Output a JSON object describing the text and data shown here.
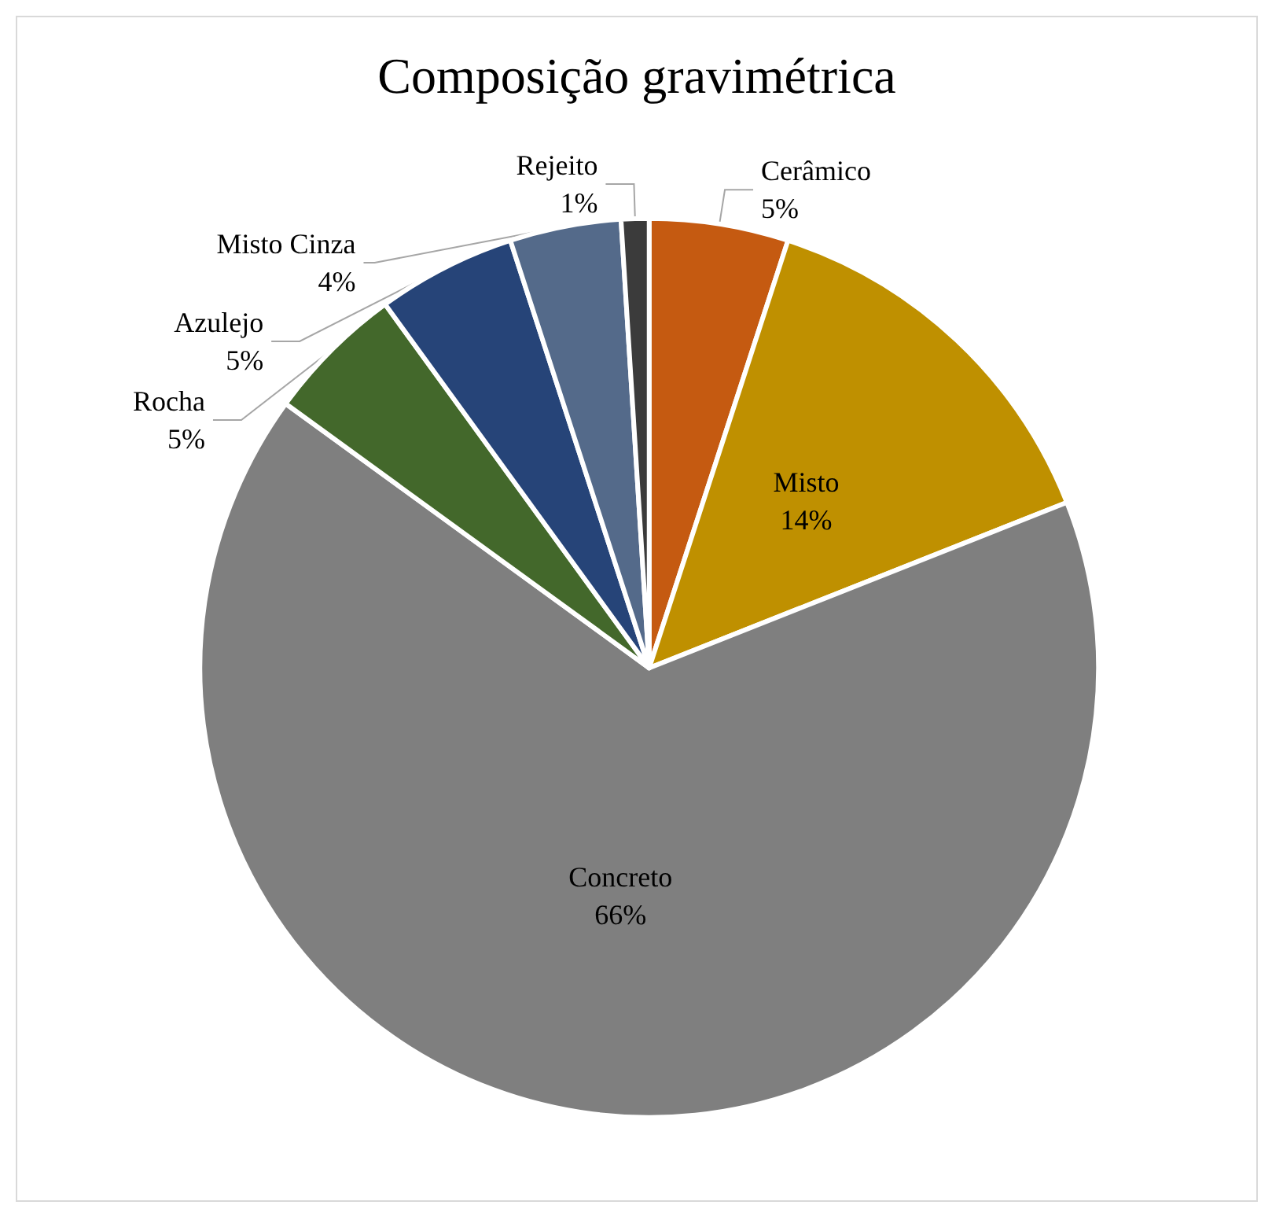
{
  "chart_data": {
    "type": "pie",
    "title": "Composição gravimétrica",
    "categories": [
      "Cerâmico",
      "Misto",
      "Concreto",
      "Rocha",
      "Azulejo",
      "Misto Cinza",
      "Rejeito"
    ],
    "values": [
      5,
      14,
      66,
      5,
      5,
      4,
      1
    ],
    "value_labels": [
      "5%",
      "14%",
      "66%",
      "5%",
      "5%",
      "4%",
      "1%"
    ],
    "colors": [
      "#c55a11",
      "#bf9000",
      "#7f7f7f",
      "#43682b",
      "#264478",
      "#546a8a",
      "#3b3b3b"
    ]
  }
}
